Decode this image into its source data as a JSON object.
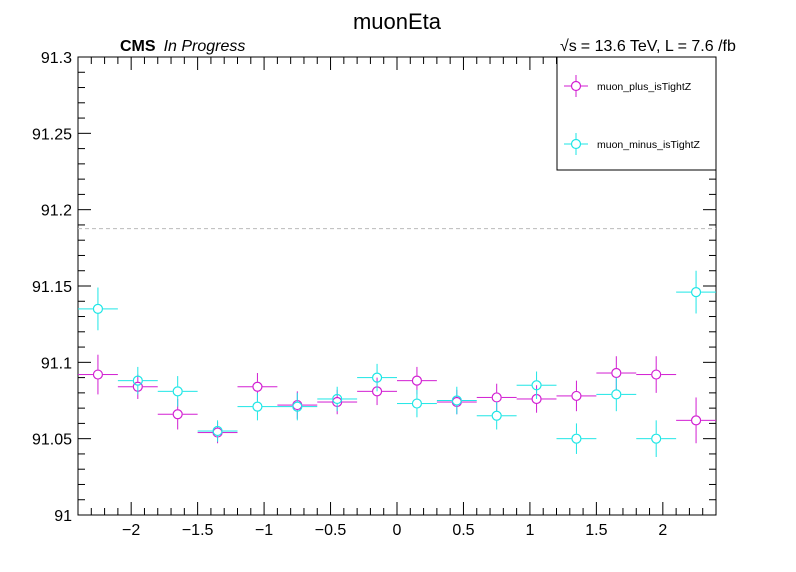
{
  "chart_data": {
    "type": "scatter",
    "title": "muonEta",
    "header_left_bold": "CMS",
    "header_left_italic": "In Progress",
    "header_right": "= 13.6 TeV, L = 7.6 /fb",
    "header_right_sqrt_symbol": "√",
    "header_right_sqrt_var": "s",
    "xlabel": "",
    "ylabel": "",
    "xlim": [
      -2.4,
      2.4
    ],
    "ylim": [
      91.0,
      91.3
    ],
    "x_ticks": [
      -2,
      -1.5,
      -1,
      -0.5,
      0,
      0.5,
      1,
      1.5,
      2
    ],
    "x_tick_labels": [
      "−2",
      "−1.5",
      "−1",
      "−0.5",
      "0",
      "0.5",
      "1",
      "1.5",
      "2"
    ],
    "y_ticks": [
      91.0,
      91.05,
      91.1,
      91.15,
      91.2,
      91.25,
      91.3
    ],
    "y_tick_labels": [
      "91",
      "91.05",
      "91.1",
      "91.15",
      "91.2",
      "91.25",
      "91.3"
    ],
    "reference_line": {
      "y": 91.1876,
      "style": "dashed",
      "color": "#bbbbbb"
    },
    "bin_half_width": 0.15,
    "legend_position": "top-right",
    "series": [
      {
        "name": "muon_plus_isTightZ",
        "color": "#d21ed2",
        "x": [
          -2.25,
          -1.95,
          -1.65,
          -1.35,
          -1.05,
          -0.75,
          -0.45,
          -0.15,
          0.15,
          0.45,
          0.75,
          1.05,
          1.35,
          1.65,
          1.95,
          2.25
        ],
        "y": [
          91.092,
          91.084,
          91.066,
          91.054,
          91.084,
          91.072,
          91.074,
          91.081,
          91.088,
          91.074,
          91.077,
          91.076,
          91.078,
          91.093,
          91.092,
          91.062
        ],
        "yerr": [
          0.013,
          0.008,
          0.01,
          0.007,
          0.009,
          0.009,
          0.008,
          0.009,
          0.009,
          0.008,
          0.009,
          0.009,
          0.01,
          0.011,
          0.012,
          0.015
        ]
      },
      {
        "name": "muon_minus_isTightZ",
        "color": "#1ee6e6",
        "x": [
          -2.25,
          -1.95,
          -1.65,
          -1.35,
          -1.05,
          -0.75,
          -0.45,
          -0.15,
          0.15,
          0.45,
          0.75,
          1.05,
          1.35,
          1.65,
          1.95,
          2.25
        ],
        "y": [
          91.135,
          91.088,
          91.081,
          91.055,
          91.071,
          91.071,
          91.076,
          91.09,
          91.073,
          91.075,
          91.065,
          91.085,
          91.05,
          91.079,
          91.05,
          91.146
        ],
        "yerr": [
          0.014,
          0.009,
          0.01,
          0.007,
          0.009,
          0.009,
          0.008,
          0.009,
          0.009,
          0.009,
          0.009,
          0.009,
          0.01,
          0.011,
          0.012,
          0.014
        ]
      }
    ]
  }
}
